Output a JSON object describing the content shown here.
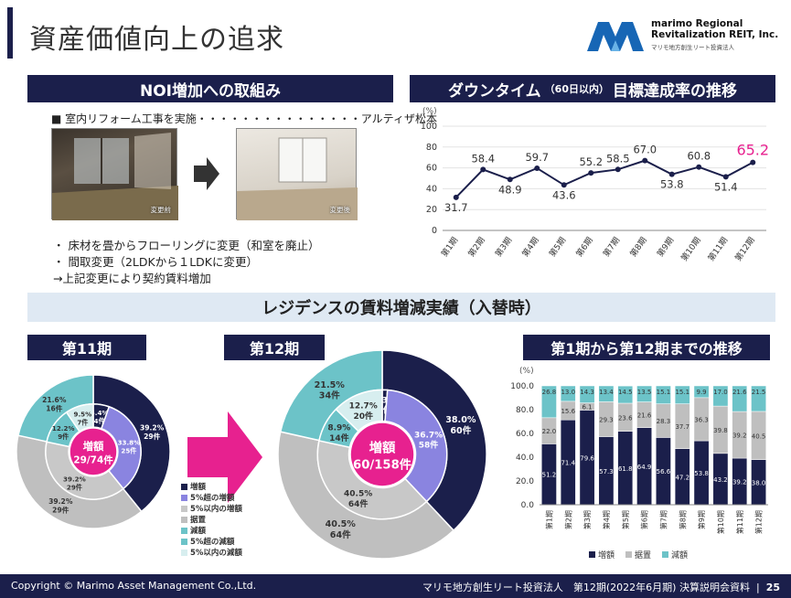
{
  "page": {
    "title": "資産価値向上の追求",
    "logo_name_1": "marimo Regional",
    "logo_name_2": "Revitalization REIT, Inc.",
    "logo_sub": "マリモ地方創生リート投資法人",
    "colors": {
      "navy": "#1b1f4b",
      "purple": "#8a84e0",
      "grey": "#bfbfbf",
      "teal": "#6cc3c8",
      "pink": "#e7218f"
    }
  },
  "noi": {
    "header": "NOI増加への取組み",
    "reform_line": "■ 室内リフォーム工事を実施・・・・・・・・・・・・・・・アルティザ松本",
    "before_label": "変更前",
    "after_label": "変更後",
    "bullet1": "・ 床材を畳からフローリングに変更（和室を廃止）",
    "bullet2": "・ 間取変更（2LDKから１LDKに変更）",
    "bullet3": "→上記変更により契約賃料増加"
  },
  "downtime": {
    "header_main": "ダウンタイム",
    "header_small": "（60日以内）",
    "header_tail": "目標達成率の推移",
    "unit": "(%)"
  },
  "rent_section": {
    "header": "レジデンスの賃料増減実績（入替時）",
    "p11_header": "第11期",
    "p12_header": "第12期",
    "trend_header": "第1期から第12期までの推移",
    "p11_center_1": "増額",
    "p11_center_2": "29/74件",
    "p12_center_1": "増額",
    "p12_center_2": "60/158件",
    "legend": [
      "増額",
      "5%超の増額",
      "5%以内の増額",
      "据置",
      "減額",
      "5%超の減額",
      "5%以内の減額"
    ]
  },
  "footer": {
    "copyright": "Copyright © Marimo Asset Management Co.,Ltd.",
    "doc": "マリモ地方創生リート投資法人　第12期(2022年6月期) 決算説明会資料",
    "sep": "|",
    "page_no": "25"
  },
  "chart_data": [
    {
      "type": "line",
      "categories": [
        "第1期",
        "第2期",
        "第3期",
        "第4期",
        "第5期",
        "第6期",
        "第7期",
        "第8期",
        "第9期",
        "第10期",
        "第11期",
        "第12期"
      ],
      "series": [
        {
          "values": [
            31.7,
            58.4,
            48.9,
            59.7,
            43.6,
            55.2,
            58.5,
            67.0,
            53.8,
            60.8,
            51.4,
            65.2
          ]
        }
      ],
      "data_labels": [
        "31.7",
        "58.4",
        "48.9",
        "59.7",
        "43.6",
        "55.2",
        "58.5",
        "67.0",
        "53.8",
        "60.8",
        "51.4",
        "65.2"
      ],
      "ylabel": "(%)",
      "ylim": [
        0,
        100
      ],
      "yticks": [
        "0",
        "20",
        "40",
        "60",
        "80",
        "100"
      ],
      "highlight_last_color": "#e7218f"
    },
    {
      "type": "pie",
      "title": "第11期",
      "outer": [
        {
          "name": "増額",
          "value": 39.2,
          "label": "39.2%",
          "count": "29件"
        },
        {
          "name": "据置",
          "value": 39.2,
          "label": "39.2%",
          "count": "29件"
        },
        {
          "name": "減額",
          "value": 21.6,
          "label": "21.6%",
          "count": "16件"
        }
      ],
      "inner": [
        {
          "name": "5%超の増額",
          "value": 5.4,
          "label": "5.4%",
          "count": "4件"
        },
        {
          "name": "5%以内の増額",
          "value": 33.8,
          "label": "33.8%",
          "count": "25件"
        },
        {
          "name": "据置",
          "value": 39.2,
          "label": "39.2%",
          "count": "29件"
        },
        {
          "name": "5%超の減額",
          "value": 12.2,
          "label": "12.2%",
          "count": "9件"
        },
        {
          "name": "5%以内の減額",
          "value": 9.5,
          "label": "9.5%",
          "count": "7件"
        }
      ],
      "center": "増額 29/74件"
    },
    {
      "type": "pie",
      "title": "第12期",
      "outer": [
        {
          "name": "増額",
          "value": 38.0,
          "label": "38.0%",
          "count": "60件"
        },
        {
          "name": "据置",
          "value": 40.5,
          "label": "40.5%",
          "count": "64件"
        },
        {
          "name": "減額",
          "value": 21.5,
          "label": "21.5%",
          "count": "34件"
        }
      ],
      "inner": [
        {
          "name": "5%超の増額",
          "value": 1.3,
          "label": "1.3%",
          "count": "2件"
        },
        {
          "name": "5%以内の増額",
          "value": 36.7,
          "label": "36.7%",
          "count": "58件"
        },
        {
          "name": "据置",
          "value": 40.5,
          "label": "40.5%",
          "count": "64件"
        },
        {
          "name": "5%超の減額",
          "value": 8.9,
          "label": "8.9%",
          "count": "14件"
        },
        {
          "name": "5%以内の減額",
          "value": 12.7,
          "label": "12.7%",
          "count": "20件"
        }
      ],
      "center": "増額 60/158件"
    },
    {
      "type": "bar",
      "stacked": true,
      "title": "第1期から第12期までの推移",
      "categories": [
        "第1期",
        "第2期",
        "第3期",
        "第4期",
        "第5期",
        "第6期",
        "第7期",
        "第8期",
        "第9期",
        "第10期",
        "第11期",
        "第12期"
      ],
      "series": [
        {
          "name": "増額",
          "values": [
            51.2,
            71.4,
            79.6,
            57.3,
            61.8,
            64.9,
            56.6,
            47.2,
            53.8,
            43.2,
            39.2,
            38.0
          ]
        },
        {
          "name": "据置",
          "values": [
            22.0,
            15.6,
            6.1,
            29.3,
            23.6,
            21.6,
            28.3,
            37.7,
            36.3,
            39.8,
            39.2,
            40.5
          ]
        },
        {
          "name": "減額",
          "values": [
            26.8,
            13.0,
            14.3,
            13.4,
            14.5,
            13.5,
            15.1,
            15.1,
            9.9,
            17.0,
            21.6,
            21.5
          ]
        }
      ],
      "ylabel": "(%)",
      "ylim": [
        0,
        100
      ],
      "yticks": [
        "0.0",
        "20.0",
        "40.0",
        "60.0",
        "80.0",
        "100.0"
      ],
      "legend_position": "bottom"
    }
  ]
}
